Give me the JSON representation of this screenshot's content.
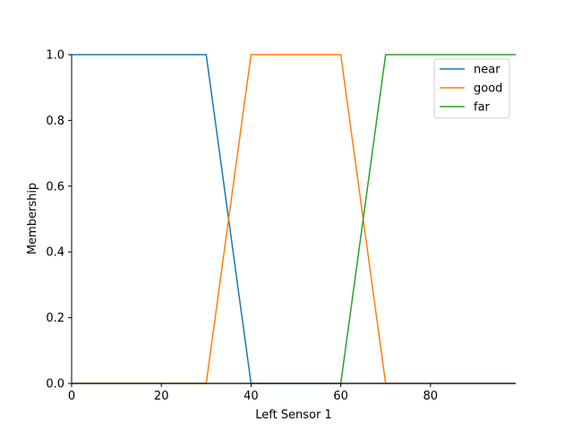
{
  "chart_data": {
    "type": "line",
    "title": "",
    "xlabel": "Left Sensor 1",
    "ylabel": "Membership",
    "xlim": [
      0,
      99
    ],
    "ylim": [
      0.0,
      1.0
    ],
    "x_ticks": [
      0,
      20,
      40,
      60,
      80
    ],
    "y_ticks": [
      0.0,
      0.2,
      0.4,
      0.6,
      0.8,
      1.0
    ],
    "x_tick_labels": [
      "0",
      "20",
      "40",
      "60",
      "80"
    ],
    "y_tick_labels": [
      "0.0",
      "0.2",
      "0.4",
      "0.6",
      "0.8",
      "1.0"
    ],
    "grid": false,
    "legend_position": "top-right",
    "series": [
      {
        "name": "near",
        "color": "#1f77b4",
        "x": [
          0,
          30,
          40,
          99
        ],
        "y": [
          1.0,
          1.0,
          0.0,
          0.0
        ]
      },
      {
        "name": "good",
        "color": "#ff7f0e",
        "x": [
          0,
          30,
          40,
          60,
          70,
          99
        ],
        "y": [
          0.0,
          0.0,
          1.0,
          1.0,
          0.0,
          0.0
        ]
      },
      {
        "name": "far",
        "color": "#2ca02c",
        "x": [
          0,
          60,
          70,
          99
        ],
        "y": [
          0.0,
          0.0,
          1.0,
          1.0
        ]
      }
    ]
  }
}
